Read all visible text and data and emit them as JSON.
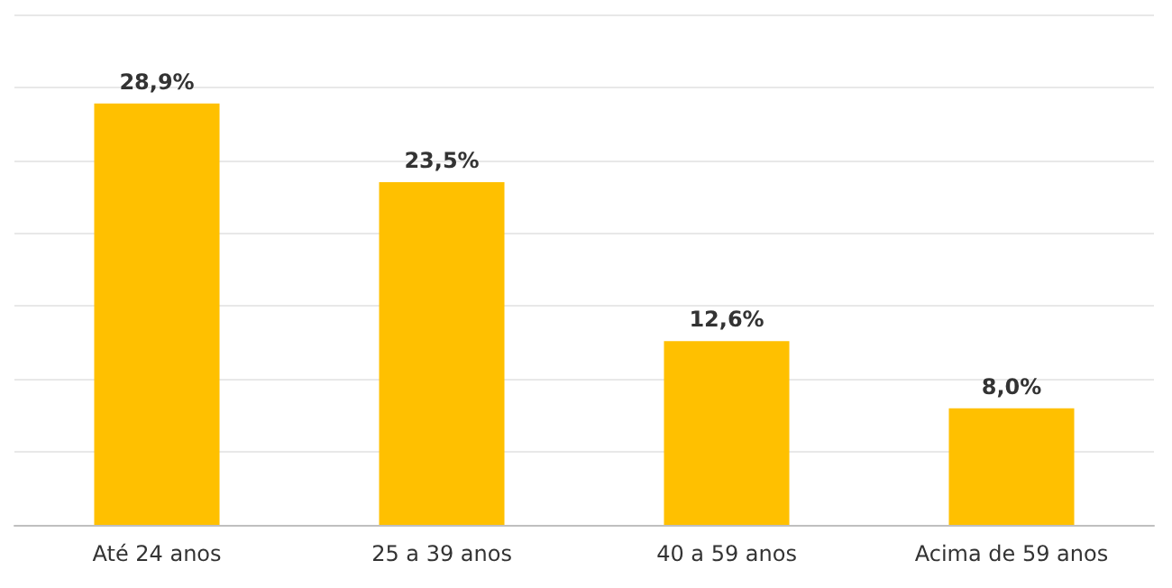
{
  "chart_data": {
    "type": "bar",
    "categories": [
      "Até 24 anos",
      "25 a 39 anos",
      "40 a 59 anos",
      "Acima de 59 anos"
    ],
    "values": [
      28.9,
      23.5,
      12.6,
      8.0
    ],
    "value_labels": [
      "28,9%",
      "23,5%",
      "12,6%",
      "8,0%"
    ],
    "color": "#ffc000",
    "ylim": [
      0,
      35
    ],
    "yticks": [
      {
        "value": 0,
        "label": null
      },
      {
        "value": 5,
        "label": null
      },
      {
        "value": 10,
        "label": null
      },
      {
        "value": 15,
        "label": null
      },
      {
        "value": 20,
        "label": null
      },
      {
        "value": 25,
        "label": null
      },
      {
        "value": 30,
        "label": null
      },
      {
        "value": 35,
        "label": null
      }
    ],
    "grid": "y",
    "tick_labels": "x"
  }
}
